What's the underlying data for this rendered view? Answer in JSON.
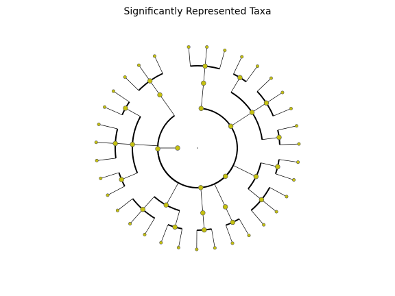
{
  "title": "Significantly Represented Taxa"
}
